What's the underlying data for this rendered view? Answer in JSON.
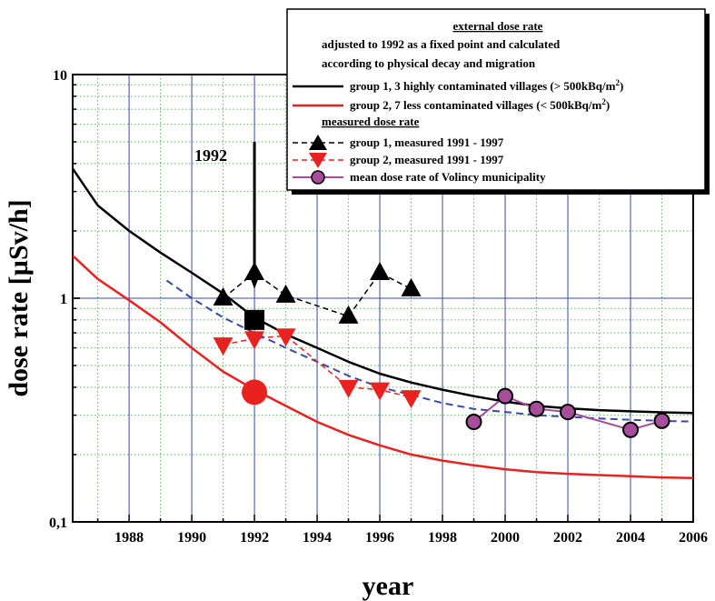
{
  "chart_data": {
    "type": "line",
    "xlabel": "year",
    "ylabel": "dose rate [µSv/h]",
    "xlim": [
      1986.2,
      2006
    ],
    "ylim": [
      0.1,
      10
    ],
    "y_scale": "log",
    "x_ticks": [
      1988,
      1990,
      1992,
      1994,
      1996,
      1998,
      2000,
      2002,
      2004,
      2006
    ],
    "x_tick_labels": [
      "1988",
      "1990",
      "1992",
      "1994",
      "1996",
      "1998",
      "2000",
      "2002",
      "2004",
      "2006"
    ],
    "y_ticks": [
      0.1,
      1,
      10
    ],
    "y_tick_labels": [
      "0,1",
      "1",
      "10"
    ],
    "grid": true,
    "annotation": {
      "text": "1992",
      "arrow_x": 1992,
      "arrow_from_y": 5.0,
      "arrow_to_y": 1.1
    },
    "legend": {
      "placement": "top-right",
      "heading_1": "external  dose rate",
      "note_line_1": "adjusted to 1992 as a fixed point and calculated",
      "note_line_2": "according to physical  decay and migration",
      "heading_2": "measured dose rate",
      "entry_group1_calc": "group 1,  3 highly contaminated villages (> 500kBq/m",
      "entry_group2_calc": "group 2,  7 less contaminated villages (< 500kBq/m",
      "superscript": "2",
      "entry_suffix": ")",
      "entry_group1_meas": "group 1, measured 1991 - 1997",
      "entry_group2_meas": "group 2, measured 1991 - 1997",
      "entry_volincy": "mean dose rate of Volincy municipality"
    },
    "series": [
      {
        "name": "group 1,  3 highly contaminated villages (> 500kBq/m2)",
        "kind": "curve",
        "color": "#000000",
        "x": [
          1986.2,
          1987,
          1988,
          1989,
          1990,
          1991,
          1992,
          1993,
          1994,
          1995,
          1996,
          1997,
          1998,
          1999,
          2000,
          2001,
          2002,
          2003,
          2004,
          2005,
          2006
        ],
        "y": [
          3.8,
          2.6,
          2.0,
          1.6,
          1.3,
          1.05,
          0.82,
          0.69,
          0.6,
          0.52,
          0.46,
          0.42,
          0.39,
          0.365,
          0.345,
          0.33,
          0.322,
          0.316,
          0.312,
          0.309,
          0.307
        ]
      },
      {
        "name": "group 2,  7 less contaminated villages (< 500kBq/m2)",
        "kind": "curve",
        "color": "#e8221e",
        "x": [
          1986.2,
          1987,
          1988,
          1989,
          1990,
          1991,
          1992,
          1993,
          1994,
          1995,
          1996,
          1997,
          1998,
          1999,
          2000,
          2001,
          2002,
          2003,
          2004,
          2005,
          2006
        ],
        "y": [
          1.55,
          1.22,
          0.98,
          0.78,
          0.6,
          0.47,
          0.39,
          0.33,
          0.28,
          0.245,
          0.22,
          0.2,
          0.188,
          0.179,
          0.172,
          0.167,
          0.164,
          0.162,
          0.16,
          0.158,
          0.157
        ]
      },
      {
        "name": "",
        "kind": "dashed",
        "color": "#3a4aa6",
        "x": [
          1989.2,
          1990,
          1991,
          1992,
          1993,
          1994,
          1995,
          1996,
          1997,
          1998,
          1999,
          2000,
          2001,
          2002,
          2003,
          2004,
          2005,
          2006
        ],
        "y": [
          1.2,
          1.0,
          0.82,
          0.7,
          0.6,
          0.52,
          0.45,
          0.4,
          0.37,
          0.34,
          0.32,
          0.31,
          0.3,
          0.295,
          0.29,
          0.286,
          0.283,
          0.281
        ]
      },
      {
        "name": "group 1, measured 1991 - 1997",
        "kind": "triangle-up",
        "color": "#000000",
        "x": [
          1991,
          1992,
          1993,
          1995,
          1996,
          1997
        ],
        "y": [
          1.0,
          1.3,
          1.03,
          0.83,
          1.3,
          1.1
        ]
      },
      {
        "name": "group 2, measured 1991 - 1997",
        "kind": "triangle-down",
        "color": "#e8221e",
        "x": [
          1991,
          1992,
          1993,
          1995,
          1996,
          1997
        ],
        "y": [
          0.62,
          0.66,
          0.68,
          0.4,
          0.39,
          0.36
        ]
      },
      {
        "name": "mean dose rate of Volincy municipality",
        "kind": "circle",
        "color": "#a64d9c",
        "x": [
          1999,
          2000,
          2001,
          2002,
          2004,
          2005
        ],
        "y": [
          0.28,
          0.365,
          0.32,
          0.31,
          0.258,
          0.283
        ]
      },
      {
        "name": "",
        "kind": "square",
        "color": "#000000",
        "x": [
          1992
        ],
        "y": [
          0.8
        ]
      },
      {
        "name": "",
        "kind": "big-circle",
        "color": "#e8221e",
        "x": [
          1992
        ],
        "y": [
          0.38
        ]
      }
    ]
  }
}
